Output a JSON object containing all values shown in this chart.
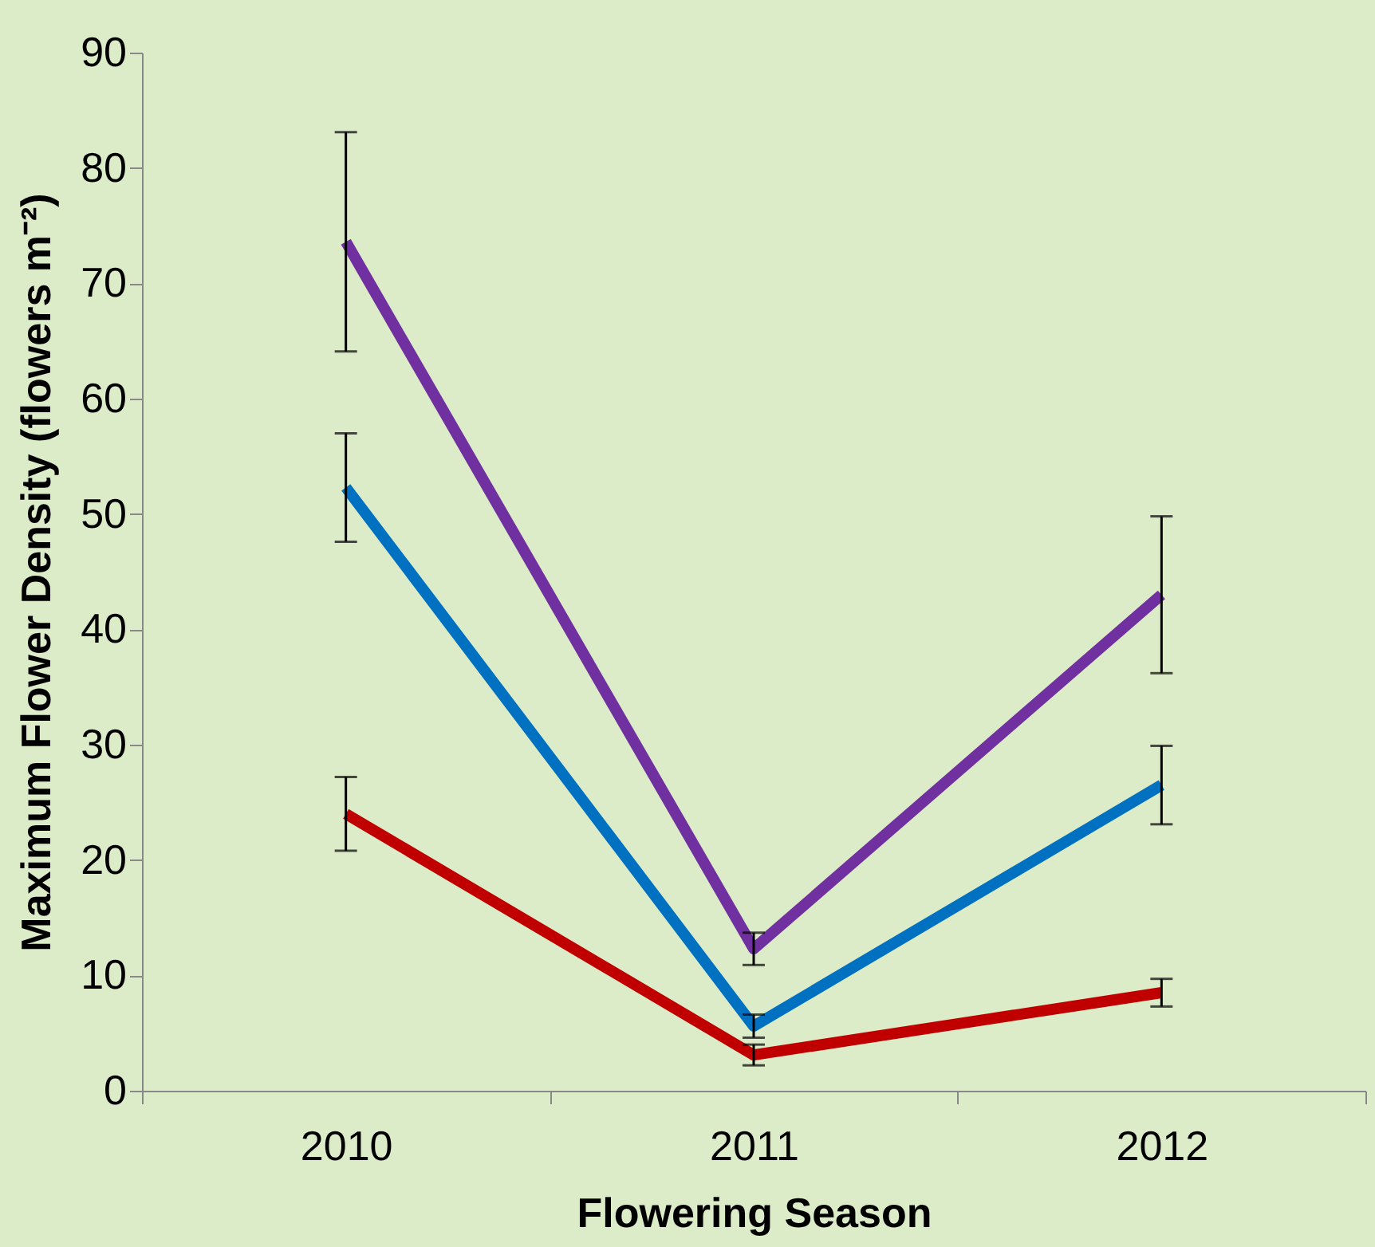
{
  "chart_data": {
    "type": "line",
    "xlabel": "Flowering Season",
    "ylabel": "Maximum Flower Density (flowers m⁻²)",
    "categories": [
      "2010",
      "2011",
      "2012"
    ],
    "series": [
      {
        "color": "#7030a0",
        "values": [
          73.6,
          12.3,
          43
        ],
        "errors": [
          9.5,
          1.4,
          6.8
        ]
      },
      {
        "color": "#0070c0",
        "values": [
          52.3,
          5.6,
          26.5
        ],
        "errors": [
          4.7,
          1.0,
          3.4
        ]
      },
      {
        "color": "#c00000",
        "values": [
          24,
          3.1,
          8.5
        ],
        "errors": [
          3.2,
          0.9,
          1.2
        ]
      }
    ],
    "ylim": [
      0,
      90
    ],
    "yticks": [
      0,
      10,
      20,
      30,
      40,
      50,
      60,
      70,
      80,
      90
    ],
    "grid": false,
    "legend": false,
    "marker": "none",
    "line_style": "solid"
  }
}
